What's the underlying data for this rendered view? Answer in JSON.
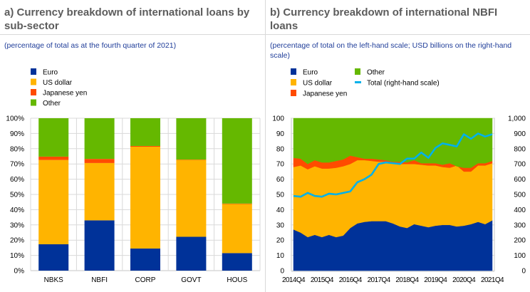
{
  "colors": {
    "euro": "#003299",
    "us_dollar": "#ffb400",
    "japanese_yen": "#ff4b00",
    "other": "#65b800",
    "total": "#00b1ea",
    "grid": "#d9d9d9",
    "title": "#5c5c5c",
    "subtitle": "#1f3d99"
  },
  "chart_data": [
    {
      "type": "bar",
      "stacked": true,
      "title": "a) Currency breakdown of international loans by sub-sector",
      "subtitle": "(percentage of total as at the fourth quarter of 2021)",
      "xlabel": "",
      "ylabel": "",
      "ylim": [
        0,
        100
      ],
      "y_ticks": [
        "0%",
        "10%",
        "20%",
        "30%",
        "40%",
        "50%",
        "60%",
        "70%",
        "80%",
        "90%",
        "100%"
      ],
      "grid": true,
      "legend_position": "top-left",
      "categories": [
        "NBKS",
        "NBFI",
        "CORP",
        "GOVT",
        "HOUS"
      ],
      "series": [
        {
          "name": "Euro",
          "key": "euro",
          "values": [
            17.3,
            33.0,
            14.5,
            22.2,
            11.5
          ]
        },
        {
          "name": "US dollar",
          "key": "us_dollar",
          "values": [
            55.3,
            37.6,
            66.8,
            50.5,
            32.2
          ]
        },
        {
          "name": "Japanese yen",
          "key": "japanese_yen",
          "values": [
            2.2,
            2.7,
            0.5,
            0.2,
            0.3
          ]
        },
        {
          "name": "Other",
          "key": "other",
          "values": [
            25.2,
            26.7,
            18.2,
            27.1,
            56.0
          ]
        }
      ]
    },
    {
      "type": "area",
      "stacked": true,
      "title": "b) Currency breakdown of international NBFI loans",
      "subtitle": "(percentage of total on the left-hand scale; USD billions on the right-hand scale)",
      "xlabel": "",
      "ylabel": "",
      "ylim": [
        0,
        100
      ],
      "y2lim": [
        0,
        1000
      ],
      "y_ticks": [
        "0",
        "10",
        "20",
        "30",
        "40",
        "50",
        "60",
        "70",
        "80",
        "90",
        "100"
      ],
      "y2_ticks": [
        "0",
        "100",
        "200",
        "300",
        "400",
        "500",
        "600",
        "700",
        "800",
        "900",
        "1,000"
      ],
      "x_tick_labels": [
        "2014Q4",
        "2015Q4",
        "2016Q4",
        "2017Q4",
        "2018Q4",
        "2019Q4",
        "2020Q4",
        "2021Q4"
      ],
      "grid": false,
      "legend_position": "top-left",
      "x": [
        "2014Q4",
        "2015Q1",
        "2015Q2",
        "2015Q3",
        "2015Q4",
        "2016Q1",
        "2016Q2",
        "2016Q3",
        "2016Q4",
        "2017Q1",
        "2017Q2",
        "2017Q3",
        "2017Q4",
        "2018Q1",
        "2018Q2",
        "2018Q3",
        "2018Q4",
        "2019Q1",
        "2019Q2",
        "2019Q3",
        "2019Q4",
        "2020Q1",
        "2020Q2",
        "2020Q3",
        "2020Q4",
        "2021Q1",
        "2021Q2",
        "2021Q3",
        "2021Q4"
      ],
      "series": [
        {
          "name": "Euro",
          "key": "euro",
          "axis": "left",
          "values": [
            27,
            25,
            22,
            23.5,
            22,
            23.5,
            22,
            23,
            28,
            31,
            32,
            32.5,
            32.5,
            32.5,
            31,
            29,
            28,
            30.5,
            29.5,
            28.5,
            29.5,
            30,
            30,
            29,
            29.5,
            30.5,
            32,
            30.5,
            33
          ]
        },
        {
          "name": "US dollar",
          "key": "us_dollar",
          "axis": "left",
          "values": [
            41,
            44,
            44.5,
            45,
            45,
            43.5,
            45.5,
            45.5,
            42,
            41.5,
            40.5,
            39.5,
            39,
            39,
            39.5,
            41,
            42,
            39.5,
            40,
            40.5,
            39.5,
            38,
            37.5,
            40,
            35.5,
            34.5,
            37,
            38.5,
            37.5
          ]
        },
        {
          "name": "Japanese yen",
          "key": "japanese_yen",
          "axis": "left",
          "values": [
            6,
            4.5,
            3.5,
            4,
            4,
            4,
            4.5,
            4.5,
            5.5,
            2,
            1,
            1.5,
            1.5,
            1,
            1,
            1.5,
            1,
            2.5,
            1,
            1.5,
            1.5,
            1.5,
            3,
            -0.5,
            2.5,
            2.5,
            1.5,
            1.5,
            1.5
          ]
        },
        {
          "name": "Other",
          "key": "other",
          "axis": "left",
          "values": [
            26,
            26.5,
            30,
            27.5,
            29,
            29,
            28,
            27,
            24.5,
            25.5,
            26.5,
            26.5,
            27,
            27.5,
            28.5,
            28.5,
            29,
            27.5,
            29.5,
            29.5,
            29.5,
            30.5,
            29.5,
            31.5,
            32.5,
            32.5,
            29.5,
            29.5,
            28
          ]
        },
        {
          "name": "Total (right-hand scale)",
          "key": "total",
          "axis": "right",
          "type": "line",
          "values": [
            490,
            485,
            510,
            490,
            485,
            505,
            500,
            510,
            520,
            580,
            600,
            630,
            700,
            710,
            705,
            700,
            735,
            735,
            775,
            740,
            805,
            835,
            825,
            815,
            895,
            865,
            900,
            880,
            895
          ]
        }
      ]
    }
  ],
  "legend_a": [
    "Euro",
    "US dollar",
    "Japanese yen",
    "Other"
  ],
  "legend_b": [
    "Euro",
    "US dollar",
    "Japanese yen",
    "Other",
    "Total (right-hand scale)"
  ]
}
